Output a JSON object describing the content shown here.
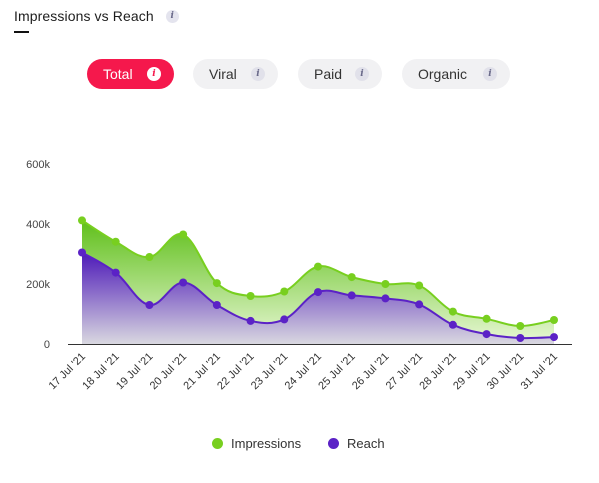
{
  "header": {
    "title": "Impressions vs Reach",
    "info_icon": "info-icon"
  },
  "tabs": [
    {
      "label": "Total",
      "active": true
    },
    {
      "label": "Viral",
      "active": false
    },
    {
      "label": "Paid",
      "active": false
    },
    {
      "label": "Organic",
      "active": false
    }
  ],
  "colors": {
    "accent": "#f5184c",
    "impressions": "#78cf1f",
    "reach": "#5b22c6"
  },
  "chart_data": {
    "type": "area",
    "title": "Impressions vs Reach",
    "categories": [
      "17 Jul '21",
      "18 Jul '21",
      "19 Jul '21",
      "20 Jul '21",
      "21 Jul '21",
      "22 Jul '21",
      "23 Jul '21",
      "24 Jul '21",
      "25 Jul '21",
      "26 Jul '21",
      "27 Jul '21",
      "28 Jul '21",
      "29 Jul '21",
      "30 Jul '21",
      "31 Jul '21"
    ],
    "series": [
      {
        "name": "Impressions",
        "values": [
          412000,
          341000,
          290000,
          365000,
          203000,
          160000,
          175000,
          258000,
          223000,
          200000,
          195000,
          108000,
          84000,
          60000,
          80000
        ]
      },
      {
        "name": "Reach",
        "values": [
          305000,
          238000,
          130000,
          205000,
          130000,
          77000,
          82000,
          173000,
          162000,
          152000,
          132000,
          64000,
          33000,
          20000,
          23000
        ]
      }
    ],
    "ylim": [
      0,
      600000
    ],
    "yticks": [
      0,
      200000,
      400000,
      600000
    ],
    "ytick_labels": [
      "0",
      "200k",
      "400k",
      "600k"
    ],
    "grid": false,
    "legend": "bottom"
  }
}
